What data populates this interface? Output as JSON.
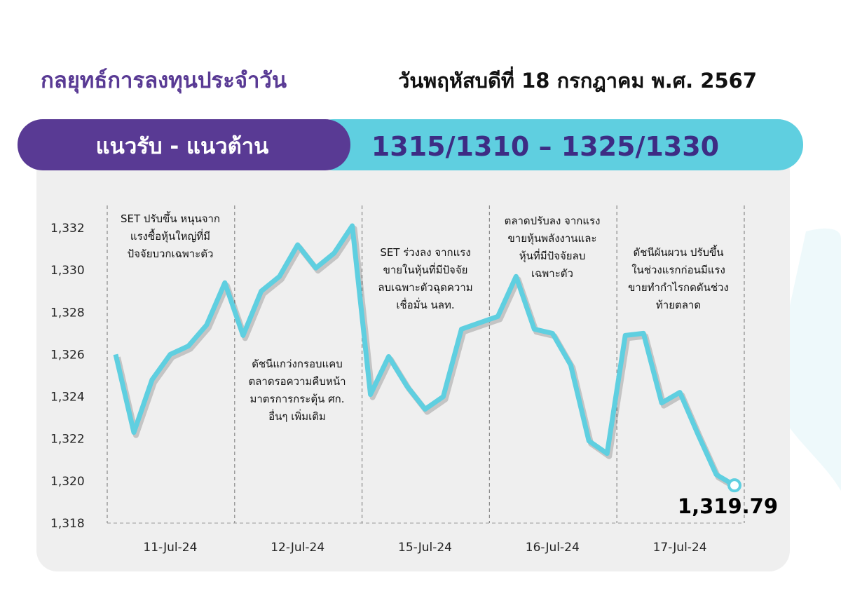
{
  "header": {
    "title": "กลยุทธ์การลงทุนประจำวัน",
    "date": "วันพฤหัสบดีที่ 18 กรกฎาคม พ.ศ. 2567"
  },
  "banner": {
    "label": "แนวรับ - แนวต้าน",
    "levels": "1315/1310  – 1325/1330"
  },
  "chart_data": {
    "type": "line",
    "categories": [
      null,
      null,
      null,
      "11-Jul-24",
      null,
      null,
      null,
      null,
      null,
      null,
      "12-Jul-24",
      null,
      null,
      null,
      null,
      null,
      null,
      "15-Jul-24",
      null,
      null,
      null,
      null,
      null,
      null,
      "16-Jul-24",
      null,
      null,
      null,
      null,
      null,
      null,
      "17-Jul-24",
      null,
      null,
      null
    ],
    "values": [
      1326.0,
      1322.3,
      1324.8,
      1326.0,
      1326.4,
      1327.4,
      1329.4,
      1326.9,
      1329.0,
      1329.7,
      1331.2,
      1330.1,
      1330.8,
      1332.1,
      1324.1,
      1325.9,
      1324.5,
      1323.4,
      1324.0,
      1327.2,
      1327.5,
      1327.8,
      1329.7,
      1327.2,
      1327.0,
      1325.5,
      1321.9,
      1321.3,
      1326.9,
      1327.0,
      1323.7,
      1324.2,
      1322.2,
      1320.3,
      1319.79
    ],
    "value_labels": [
      null,
      null,
      null,
      null,
      null,
      null,
      null,
      null,
      null,
      null,
      null,
      null,
      null,
      null,
      null,
      null,
      null,
      null,
      null,
      null,
      null,
      null,
      null,
      null,
      null,
      null,
      null,
      null,
      null,
      null,
      null,
      null,
      null,
      null,
      "1,319.79"
    ],
    "color": "#5fcfe0",
    "ylim": [
      1318,
      1333
    ],
    "yticks": [
      {
        "value": 1318,
        "label": "1,318"
      },
      {
        "value": 1320,
        "label": "1,320"
      },
      {
        "value": 1322,
        "label": "1,322"
      },
      {
        "value": 1324,
        "label": "1,324"
      },
      {
        "value": 1326,
        "label": "1,326"
      },
      {
        "value": 1328,
        "label": "1,328"
      },
      {
        "value": 1330,
        "label": "1,330"
      },
      {
        "value": 1332,
        "label": "1,332"
      }
    ],
    "annotations": [
      {
        "lines": [
          "SET ปรับขึ้น หนุนจาก",
          "แรงซื้อหุ้นใหญ่ที่มี",
          "ปัจจัยบวกเฉพาะตัว"
        ]
      },
      {
        "lines": [
          "ดัชนีแกว่งกรอบแคบ",
          "ตลาดรอความคืบหน้า",
          "มาตรการกระตุ้น ศก.",
          "อื่นๆ เพิ่มเติม"
        ]
      },
      {
        "lines": [
          "SET ร่วงลง จากแรง",
          "ขายในหุ้นที่มีปัจจัย",
          "ลบเฉพาะตัวฉุดความ",
          "เชื่อมั่น นลท."
        ]
      },
      {
        "lines": [
          "ตลาดปรับลง จากแรง",
          "ขายหุ้นพลังงานและ",
          "หุ้นที่มีปัจจัยลบ",
          "เฉพาะตัว"
        ]
      },
      {
        "lines": [
          "ดัชนีผันผวน ปรับขึ้น",
          "ในช่วงแรกก่อนมีแรง",
          "ขายทำกำไรกดดันช่วง",
          "ท้ายตลาด"
        ]
      }
    ]
  }
}
